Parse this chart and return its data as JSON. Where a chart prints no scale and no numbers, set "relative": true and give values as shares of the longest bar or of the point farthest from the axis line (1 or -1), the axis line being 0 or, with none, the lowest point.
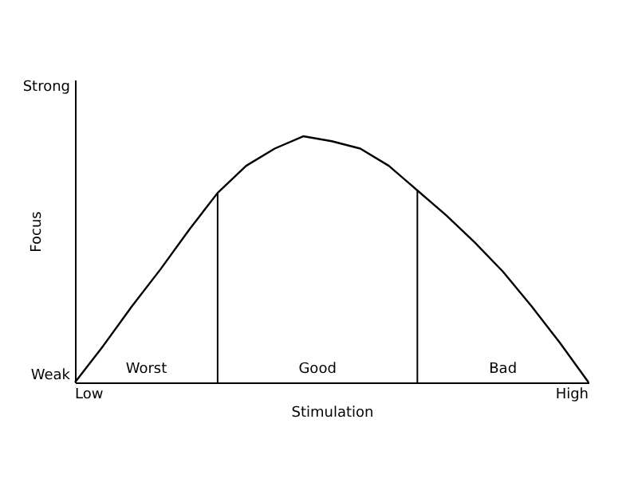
{
  "chart_data": {
    "type": "line",
    "relative": true,
    "xlabel": "Stimulation",
    "ylabel": "Focus",
    "categories": [
      null,
      null,
      null,
      null,
      null,
      null,
      null,
      null,
      null,
      null,
      null,
      null,
      null,
      null,
      null,
      null,
      null,
      null,
      null
    ],
    "series": [
      {
        "color": "#000000",
        "values": [
          0,
          0.15,
          0.31,
          0.46,
          0.62,
          0.77,
          0.88,
          0.95,
          1,
          0.98,
          0.95,
          0.88,
          0.78,
          0.68,
          0.57,
          0.45,
          0.31,
          0.16,
          0
        ]
      }
    ],
    "annotations": [
      "Weak",
      "Strong",
      "Low",
      "High",
      "Worst",
      "Good",
      "Bad"
    ],
    "legend": false,
    "marker": "none",
    "line_style": "solid"
  }
}
